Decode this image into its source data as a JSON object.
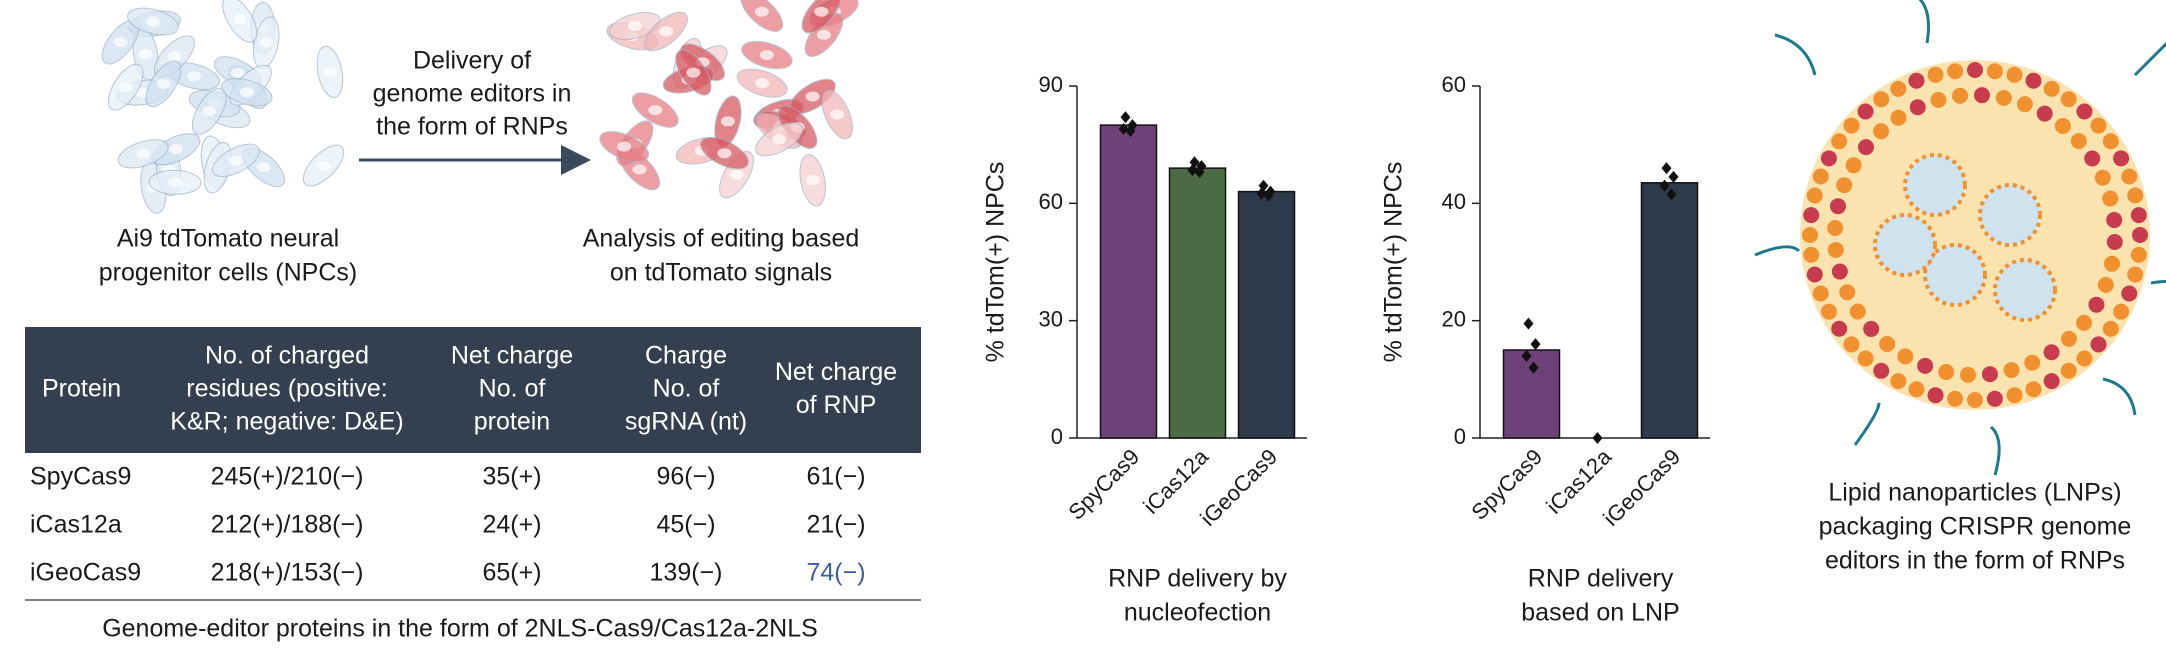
{
  "diagram": {
    "arrow_label": [
      "Delivery of",
      "genome editors in",
      "the form of RNPs"
    ],
    "left_caption": [
      "Ai9 tdTomato neural",
      "progenitor cells (NPCs)"
    ],
    "right_caption": [
      "Analysis of editing based",
      "on tdTomato signals"
    ]
  },
  "table": {
    "header": [
      [
        "Protein"
      ],
      [
        "No. of charged",
        "residues (positive:",
        "K&R; negative: D&E)"
      ],
      [
        "Net charge",
        "No. of",
        "protein"
      ],
      [
        "Charge",
        "No. of",
        "sgRNA (nt)"
      ],
      [
        "Net charge",
        "of RNP"
      ]
    ],
    "rows": [
      [
        "SpyCas9",
        "245(+)/210(−)",
        "35(+)",
        "96(−)",
        "61(−)"
      ],
      [
        "iCas12a",
        "212(+)/188(−)",
        "24(+)",
        "45(−)",
        "21(−)"
      ],
      [
        "iGeoCas9",
        "218(+)/153(−)",
        "65(+)",
        "139(−)",
        "74(−)"
      ]
    ],
    "caption": "Genome-editor proteins in the form of 2NLS-Cas9/Cas12a-2NLS"
  },
  "chart_data": [
    {
      "type": "bar",
      "categories": [
        "SpyCas9",
        "iCas12a",
        "iGeoCas9"
      ],
      "values": [
        80,
        69,
        63
      ],
      "colors": [
        "#6e4279",
        "#4c6b44",
        "#2f3b4b"
      ],
      "replicates": [
        [
          82,
          80,
          79,
          78.5
        ],
        [
          70.5,
          69.5,
          68.5,
          68
        ],
        [
          64.5,
          63,
          62.5,
          62
        ]
      ],
      "ylabel": "% tdTom(+) NPCs",
      "ylim": [
        0,
        90
      ],
      "yticks": [
        0,
        30,
        60,
        90
      ],
      "xlabel": [
        "RNP delivery by",
        "nucleofection"
      ]
    },
    {
      "type": "bar",
      "categories": [
        "SpyCas9",
        "iCas12a",
        "iGeoCas9"
      ],
      "values": [
        15,
        0,
        43.5
      ],
      "colors": [
        "#6e4279",
        "#4c6b44",
        "#2f3b4b"
      ],
      "replicates": [
        [
          19.5,
          16,
          14,
          12
        ],
        [
          0
        ],
        [
          46,
          44.5,
          43,
          41.5
        ]
      ],
      "ylabel": "% tdTom(+) NPCs",
      "ylim": [
        0,
        60
      ],
      "yticks": [
        0,
        20,
        40,
        60
      ],
      "xlabel": [
        "RNP delivery",
        "based on LNP"
      ]
    }
  ],
  "lnp_caption": [
    "Lipid nanoparticles (LNPs)",
    "packaging CRISPR genome",
    "editors in the form of RNPs"
  ]
}
